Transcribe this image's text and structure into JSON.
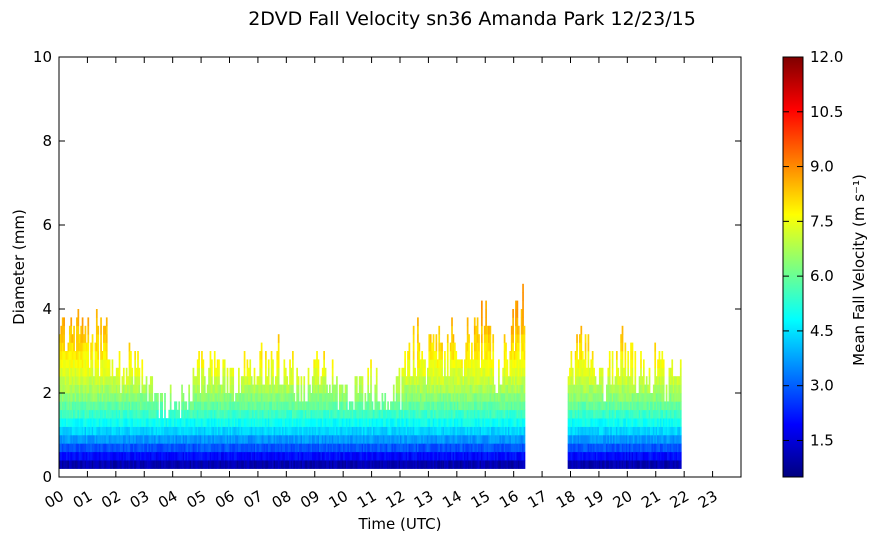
{
  "chart_data": {
    "type": "heatmap",
    "title": "2DVD Fall Velocity sn36 Amanda Park 12/23/15",
    "xlabel": "Time (UTC)",
    "ylabel": "Diameter (mm)",
    "x_unit": "hour",
    "xlim": [
      0,
      24
    ],
    "ylim": [
      0,
      10
    ],
    "x_ticks": [
      "00",
      "01",
      "02",
      "03",
      "04",
      "05",
      "06",
      "07",
      "08",
      "09",
      "10",
      "11",
      "12",
      "13",
      "14",
      "15",
      "16",
      "17",
      "18",
      "19",
      "20",
      "21",
      "22",
      "23"
    ],
    "y_ticks": [
      "0",
      "2",
      "4",
      "6",
      "8",
      "10"
    ],
    "colorbar": {
      "label": "Mean Fall Velocity (m s⁻¹)",
      "range": [
        0.5,
        12.0
      ],
      "ticks": [
        "1.5",
        "3.0",
        "4.5",
        "6.0",
        "7.5",
        "9.0",
        "10.5",
        "12.0"
      ],
      "colormap": "jet"
    },
    "grid": false,
    "approx_max_diameter_mm": [
      [
        0.0,
        3.9
      ],
      [
        0.5,
        4.3
      ],
      [
        1.0,
        3.6
      ],
      [
        1.5,
        3.9
      ],
      [
        2.0,
        3.3
      ],
      [
        2.5,
        3.1
      ],
      [
        3.0,
        2.5
      ],
      [
        3.5,
        1.7
      ],
      [
        4.0,
        1.9
      ],
      [
        4.5,
        2.0
      ],
      [
        5.0,
        3.0
      ],
      [
        5.5,
        3.1
      ],
      [
        6.0,
        2.8
      ],
      [
        6.5,
        2.7
      ],
      [
        7.0,
        3.1
      ],
      [
        7.5,
        3.3
      ],
      [
        8.0,
        3.1
      ],
      [
        8.5,
        2.3
      ],
      [
        9.0,
        3.1
      ],
      [
        9.5,
        2.6
      ],
      [
        10.0,
        2.1
      ],
      [
        10.5,
        2.3
      ],
      [
        11.0,
        2.5
      ],
      [
        11.5,
        2.0
      ],
      [
        12.0,
        2.3
      ],
      [
        12.5,
        3.5
      ],
      [
        13.0,
        3.6
      ],
      [
        13.5,
        3.3
      ],
      [
        14.0,
        3.8
      ],
      [
        14.5,
        3.9
      ],
      [
        15.0,
        4.2
      ],
      [
        15.5,
        2.5
      ],
      [
        16.0,
        4.6
      ],
      [
        18.0,
        2.9
      ],
      [
        18.5,
        3.7
      ],
      [
        19.0,
        2.5
      ],
      [
        19.5,
        3.2
      ],
      [
        20.0,
        3.6
      ],
      [
        20.5,
        2.7
      ],
      [
        21.0,
        3.0
      ],
      [
        21.5,
        2.5
      ],
      [
        22.0,
        2.9
      ]
    ],
    "gaps_hours": [
      [
        16.4,
        17.9
      ],
      [
        21.9,
        24.0
      ]
    ]
  }
}
